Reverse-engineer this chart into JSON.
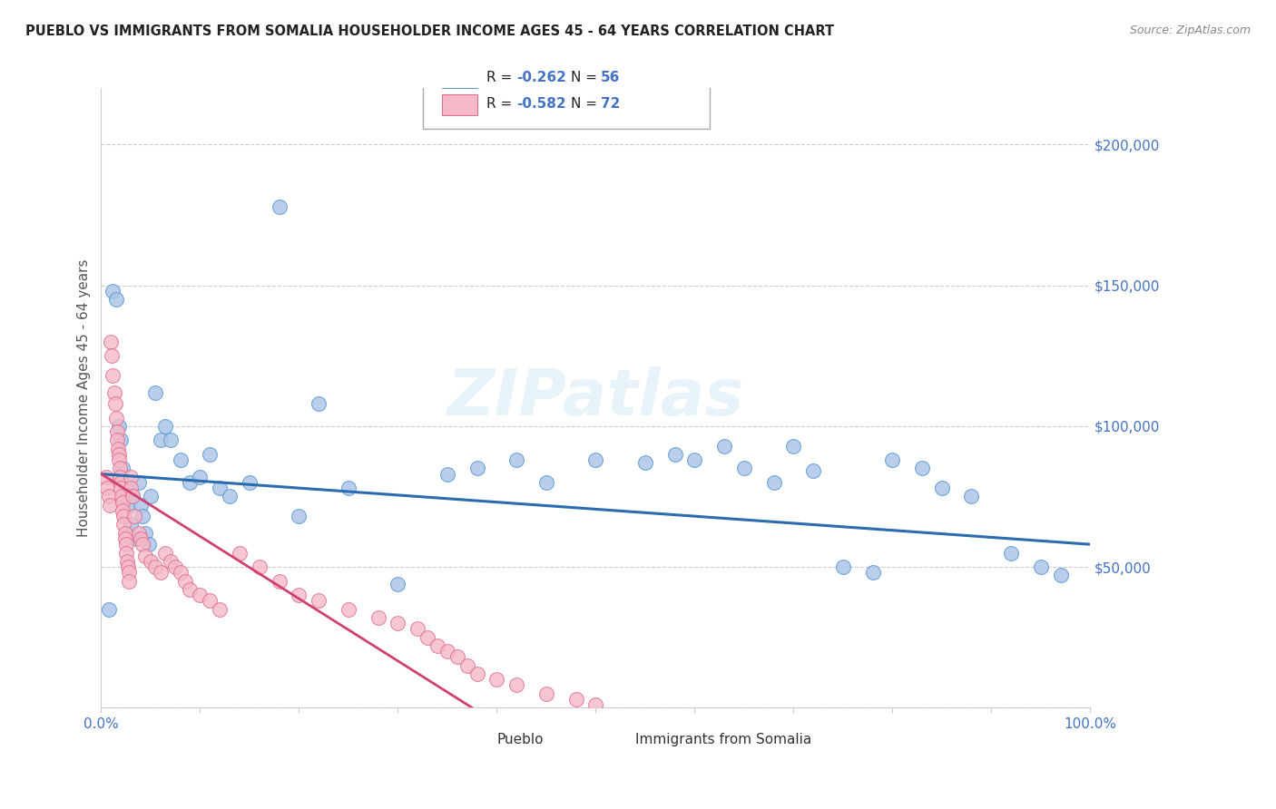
{
  "title": "PUEBLO VS IMMIGRANTS FROM SOMALIA HOUSEHOLDER INCOME AGES 45 - 64 YEARS CORRELATION CHART",
  "source": "Source: ZipAtlas.com",
  "ylabel": "Householder Income Ages 45 - 64 years",
  "xlim": [
    0,
    1.0
  ],
  "ylim": [
    0,
    220000
  ],
  "yticks": [
    0,
    50000,
    100000,
    150000,
    200000
  ],
  "xticks": [
    0.0,
    0.1,
    0.2,
    0.3,
    0.4,
    0.5,
    0.6,
    0.7,
    0.8,
    0.9,
    1.0
  ],
  "background_color": "#ffffff",
  "grid_color": "#cccccc",
  "pueblo_color": "#aec6e8",
  "somalia_color": "#f5b8c8",
  "pueblo_edge_color": "#5b9bd5",
  "somalia_edge_color": "#e07090",
  "pueblo_line_color": "#2b6cb0",
  "somalia_line_color": "#d04070",
  "axis_color": "#4472c4",
  "legend_pueblo_R": "-0.262",
  "legend_pueblo_N": "56",
  "legend_somalia_R": "-0.582",
  "legend_somalia_N": "72",
  "pueblo_scatter_x": [
    0.008,
    0.012,
    0.015,
    0.018,
    0.02,
    0.022,
    0.025,
    0.027,
    0.028,
    0.03,
    0.032,
    0.035,
    0.038,
    0.04,
    0.042,
    0.045,
    0.048,
    0.05,
    0.055,
    0.06,
    0.065,
    0.07,
    0.08,
    0.09,
    0.1,
    0.11,
    0.12,
    0.13,
    0.15,
    0.18,
    0.2,
    0.22,
    0.25,
    0.3,
    0.35,
    0.38,
    0.42,
    0.45,
    0.5,
    0.55,
    0.58,
    0.6,
    0.63,
    0.65,
    0.68,
    0.7,
    0.72,
    0.75,
    0.78,
    0.8,
    0.83,
    0.85,
    0.88,
    0.92,
    0.95,
    0.97
  ],
  "pueblo_scatter_y": [
    35000,
    148000,
    145000,
    100000,
    95000,
    85000,
    78000,
    80000,
    72000,
    65000,
    75000,
    60000,
    80000,
    72000,
    68000,
    62000,
    58000,
    75000,
    112000,
    95000,
    100000,
    95000,
    88000,
    80000,
    82000,
    90000,
    78000,
    75000,
    80000,
    178000,
    68000,
    108000,
    78000,
    44000,
    83000,
    85000,
    88000,
    80000,
    88000,
    87000,
    90000,
    88000,
    93000,
    85000,
    80000,
    93000,
    84000,
    50000,
    48000,
    88000,
    85000,
    78000,
    75000,
    55000,
    50000,
    47000
  ],
  "somalia_scatter_x": [
    0.005,
    0.006,
    0.008,
    0.009,
    0.01,
    0.011,
    0.012,
    0.013,
    0.014,
    0.015,
    0.016,
    0.016,
    0.017,
    0.018,
    0.018,
    0.019,
    0.019,
    0.02,
    0.02,
    0.021,
    0.022,
    0.022,
    0.023,
    0.023,
    0.024,
    0.024,
    0.025,
    0.025,
    0.026,
    0.027,
    0.028,
    0.028,
    0.03,
    0.03,
    0.032,
    0.034,
    0.038,
    0.04,
    0.042,
    0.045,
    0.05,
    0.055,
    0.06,
    0.065,
    0.07,
    0.075,
    0.08,
    0.085,
    0.09,
    0.1,
    0.11,
    0.12,
    0.14,
    0.16,
    0.18,
    0.2,
    0.22,
    0.25,
    0.28,
    0.3,
    0.32,
    0.33,
    0.34,
    0.35,
    0.36,
    0.37,
    0.38,
    0.4,
    0.42,
    0.45,
    0.48,
    0.5
  ],
  "somalia_scatter_y": [
    82000,
    78000,
    75000,
    72000,
    130000,
    125000,
    118000,
    112000,
    108000,
    103000,
    98000,
    95000,
    92000,
    90000,
    88000,
    85000,
    82000,
    80000,
    78000,
    75000,
    73000,
    70000,
    68000,
    65000,
    62000,
    60000,
    58000,
    55000,
    52000,
    50000,
    48000,
    45000,
    82000,
    78000,
    75000,
    68000,
    62000,
    60000,
    58000,
    54000,
    52000,
    50000,
    48000,
    55000,
    52000,
    50000,
    48000,
    45000,
    42000,
    40000,
    38000,
    35000,
    55000,
    50000,
    45000,
    40000,
    38000,
    35000,
    32000,
    30000,
    28000,
    25000,
    22000,
    20000,
    18000,
    15000,
    12000,
    10000,
    8000,
    5000,
    3000,
    1000
  ],
  "pueblo_trendline_x": [
    0.0,
    1.0
  ],
  "pueblo_trendline_y": [
    83000,
    58000
  ],
  "somalia_trendline_x": [
    0.0,
    0.375
  ],
  "somalia_trendline_y": [
    83000,
    0
  ]
}
